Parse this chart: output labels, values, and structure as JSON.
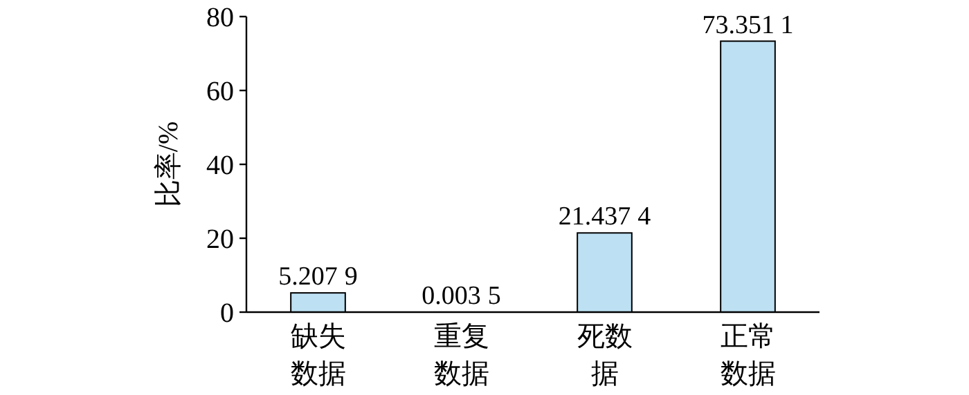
{
  "chart_data": {
    "type": "bar",
    "ylabel": "比率/%",
    "categories": [
      "缺失数据",
      "重复数据",
      "死数据",
      "正常数据"
    ],
    "values": [
      5.2079,
      0.0035,
      21.4374,
      73.3511
    ],
    "data_labels": true,
    "color": "#bde0f2",
    "ylim": [
      0,
      80
    ],
    "yticks": [
      0,
      20,
      40,
      60,
      80
    ]
  }
}
